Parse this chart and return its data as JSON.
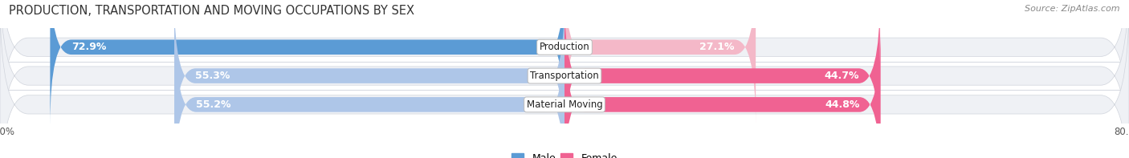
{
  "title": "PRODUCTION, TRANSPORTATION AND MOVING OCCUPATIONS BY SEX",
  "source": "Source: ZipAtlas.com",
  "categories": [
    "Production",
    "Transportation",
    "Material Moving"
  ],
  "male_values": [
    72.9,
    55.3,
    55.2
  ],
  "female_values": [
    27.1,
    44.7,
    44.8
  ],
  "male_color_row0": "#5b9bd5",
  "male_color_row1": "#aec6e8",
  "male_color_row2": "#aec6e8",
  "female_color_row0": "#f4b8c8",
  "female_color_row1": "#f06292",
  "female_color_row2": "#f06292",
  "track_color": "#e8eaf0",
  "track_bg": "#f0f2f5",
  "label_color": "white",
  "x_min": -80.0,
  "x_max": 80.0,
  "background_color": "#ffffff",
  "title_fontsize": 10.5,
  "source_fontsize": 8,
  "tick_fontsize": 8.5,
  "legend_fontsize": 9,
  "bar_label_fontsize": 9
}
